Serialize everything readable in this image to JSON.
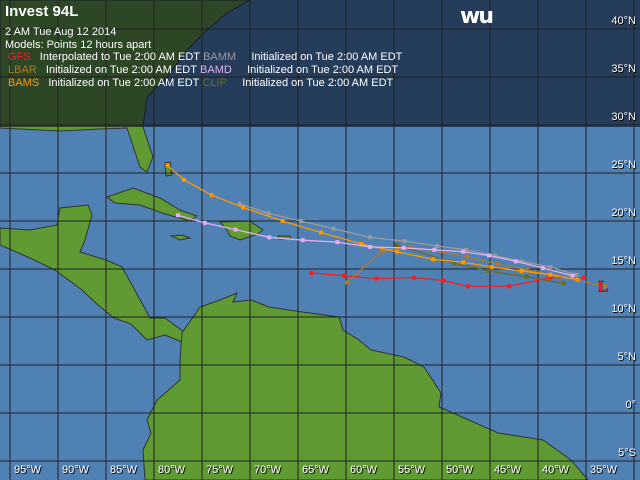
{
  "title": "Invest 94L",
  "date_line": "2 AM  Tue Aug 12 2014",
  "models_line": "Models:   Points 12 hours apart",
  "logo": "wu",
  "legend": [
    {
      "model": "GFS",
      "text": "Interpolated to Tue 2:00 AM EDT",
      "color": "#ff1a1a"
    },
    {
      "model": "BAMM",
      "text": "Initialized on Tue 2:00 AM EDT",
      "color": "#9a9a9a"
    },
    {
      "model": "LBAR",
      "text": "Initialized on Tue 2:00 AM EDT",
      "color": "#b07a2a"
    },
    {
      "model": "BAMD",
      "text": "Initialized on Tue 2:00 AM EDT",
      "color": "#e3aef2"
    },
    {
      "model": "BAMS",
      "text": "Initialized on Tue 2:00 AM EDT",
      "color": "#ff9900"
    },
    {
      "model": "CLIP",
      "text": "Initialized on Tue 2:00 AM EDT",
      "color": "#6e6a1c"
    }
  ],
  "storm_symbol": "L",
  "storm_position": {
    "lon": -33.2,
    "lat": 13.3
  },
  "lat_labels": [
    "40°N",
    "35°N",
    "30°N",
    "25°N",
    "20°N",
    "15°N",
    "10°N",
    "5°N",
    "0°",
    "5°S"
  ],
  "lon_labels": [
    "95°W",
    "90°W",
    "85°W",
    "80°W",
    "75°W",
    "70°W",
    "65°W",
    "60°W",
    "55°W",
    "50°W",
    "45°W",
    "40°W",
    "35°W"
  ],
  "tracks": [
    {
      "model": "GFS",
      "color": "#ff1a1a",
      "points": [
        [
          -63.6,
          14.6
        ],
        [
          -60.2,
          14.3
        ],
        [
          -56.8,
          14.0
        ],
        [
          -52.9,
          14.1
        ],
        [
          -49.9,
          13.8
        ],
        [
          -47.3,
          13.2
        ],
        [
          -43.0,
          13.2
        ],
        [
          -38.7,
          14.1
        ],
        [
          -35.2,
          14.1
        ]
      ]
    },
    {
      "model": "BAMM",
      "color": "#9a9a9a",
      "points": [
        [
          -71.1,
          21.8
        ],
        [
          -68.1,
          20.8
        ],
        [
          -64.7,
          20.0
        ],
        [
          -61.3,
          19.2
        ],
        [
          -57.5,
          18.3
        ],
        [
          -53.9,
          17.9
        ],
        [
          -50.5,
          17.4
        ],
        [
          -47.5,
          17.0
        ],
        [
          -44.5,
          16.4
        ],
        [
          -41.7,
          15.8
        ],
        [
          -38.7,
          15.2
        ],
        [
          -36.0,
          14.4
        ]
      ]
    },
    {
      "model": "LBAR",
      "color": "#b07a2a",
      "points": [
        [
          -59.9,
          13.6
        ],
        [
          -56.2,
          16.9
        ],
        [
          -53.3,
          17.3
        ],
        [
          -47.4,
          16.3
        ],
        [
          -44.2,
          15.5
        ],
        [
          -41.1,
          14.9
        ],
        [
          -38.1,
          14.3
        ],
        [
          -33.0,
          13.2
        ]
      ]
    },
    {
      "model": "CLIP",
      "color": "#6e6a1c",
      "points": [
        [
          -54.7,
          17.5
        ],
        [
          -48.7,
          15.6
        ],
        [
          -45.2,
          14.8
        ],
        [
          -41.2,
          14.2
        ],
        [
          -37.3,
          13.5
        ]
      ]
    },
    {
      "model": "BAMS",
      "color": "#ff9900",
      "points": [
        [
          -78.6,
          25.8
        ],
        [
          -76.9,
          24.3
        ],
        [
          -74.0,
          22.7
        ],
        [
          -70.7,
          21.4
        ],
        [
          -66.6,
          20.0
        ],
        [
          -62.6,
          18.8
        ],
        [
          -58.4,
          17.6
        ],
        [
          -54.7,
          16.8
        ],
        [
          -50.9,
          16.0
        ],
        [
          -47.8,
          15.7
        ],
        [
          -44.8,
          15.2
        ],
        [
          -41.7,
          14.8
        ],
        [
          -38.7,
          14.4
        ],
        [
          -35.9,
          13.9
        ]
      ]
    },
    {
      "model": "BAMD",
      "color": "#e3aef2",
      "points": [
        [
          -77.5,
          20.6
        ],
        [
          -74.7,
          19.8
        ],
        [
          -71.5,
          19.1
        ],
        [
          -68.0,
          18.3
        ],
        [
          -64.5,
          18.0
        ],
        [
          -60.9,
          17.8
        ],
        [
          -57.5,
          17.3
        ],
        [
          -54.0,
          17.2
        ],
        [
          -50.8,
          17.0
        ],
        [
          -47.8,
          16.8
        ],
        [
          -45.1,
          16.4
        ],
        [
          -42.3,
          15.8
        ],
        [
          -39.5,
          15.1
        ],
        [
          -36.4,
          14.3
        ]
      ]
    }
  ]
}
